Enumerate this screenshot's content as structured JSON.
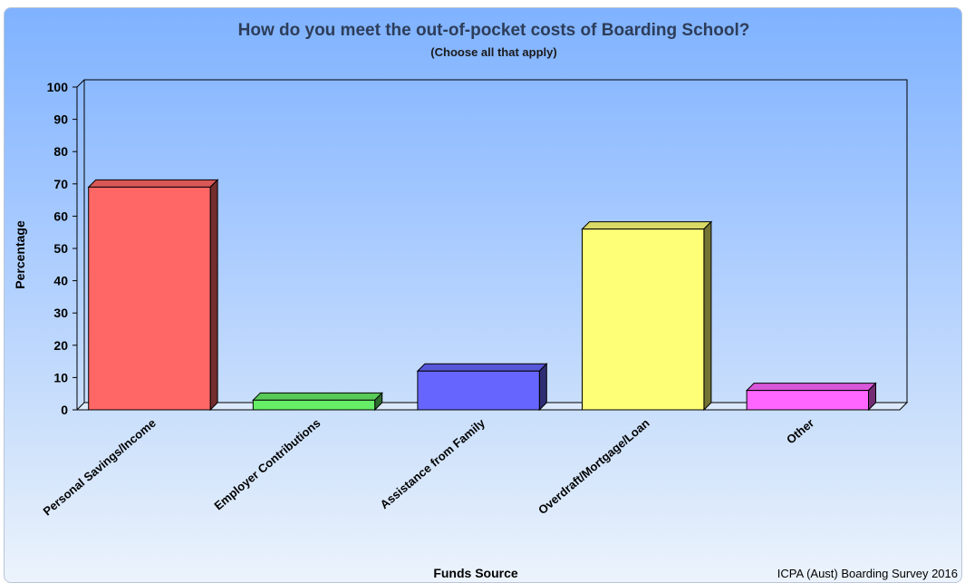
{
  "chart_data": {
    "type": "bar",
    "title": "How do you meet the out-of-pocket costs of Boarding School?",
    "subtitle": "(Choose all that apply)",
    "xlabel": "Funds Source",
    "ylabel": "Percentage",
    "credit": "ICPA (Aust) Boarding Survey 2016",
    "categories": [
      "Personal Savings/Income",
      "Employer Contributions",
      "Assistance from Family",
      "Overdraft/Mortgage/Loan",
      "Other"
    ],
    "values": [
      69,
      3,
      12,
      56,
      6
    ],
    "colors": [
      "#ff6666",
      "#66ee66",
      "#6666ff",
      "#ffff77",
      "#ff66ff"
    ],
    "ylim": [
      0,
      100
    ],
    "yticks": [
      0,
      10,
      20,
      30,
      40,
      50,
      60,
      70,
      80,
      90,
      100
    ],
    "grid": false,
    "legend": "none",
    "style": "3d-bar"
  }
}
